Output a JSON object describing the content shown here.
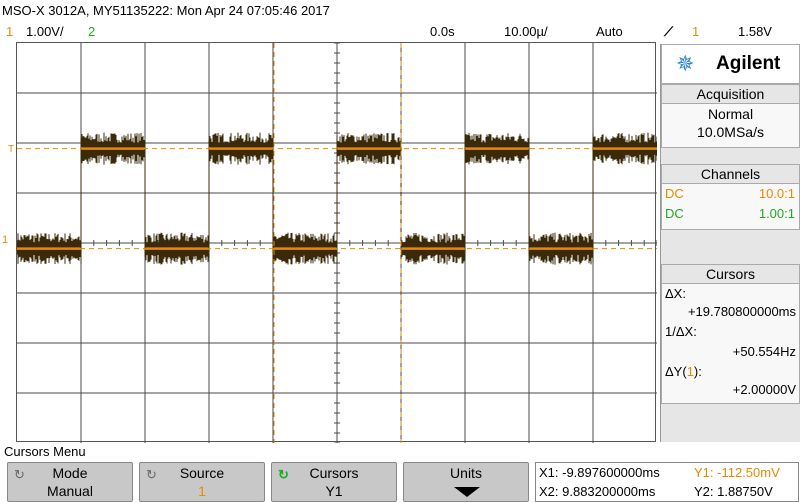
{
  "header": {
    "title": "MSO-X 3012A, MY51135222: Mon Apr 24 07:05:46 2017",
    "ch1_number": "1",
    "ch1_scale": "1.00V/",
    "ch2_number": "2",
    "time_delay": "0.0s",
    "time_scale": "10.00µ/",
    "trigger_mode": "Auto",
    "trigger_icon": "trigger-edge-icon",
    "trigger_source": "1",
    "trigger_level": "1.58V"
  },
  "colors": {
    "ch1": "#e68a00",
    "ch2": "#22aa22",
    "trace": "#3a2a0a",
    "grid": "#4a4a4a"
  },
  "panel": {
    "brand": "Agilent",
    "acquisition": {
      "header": "Acquisition",
      "mode": "Normal",
      "rate": "10.0MSa/s"
    },
    "channels": {
      "header": "Channels",
      "rows": [
        {
          "coupling": "DC",
          "probe": "10.0:1"
        },
        {
          "coupling": "DC",
          "probe": "1.00:1"
        }
      ]
    },
    "cursors": {
      "header": "Cursors",
      "dx_label": "ΔX:",
      "dx_value": "+19.780800000ms",
      "inv_dx_label": "1/ΔX:",
      "inv_dx_value": "+50.554Hz",
      "dy_label_pre": "ΔY(",
      "dy_label_ch": "1",
      "dy_label_post": "):",
      "dy_value": "+2.00000V"
    }
  },
  "markers": {
    "ch1_ground": "1",
    "trigger_level": "T"
  },
  "menu": {
    "title": "Cursors Menu",
    "keys": [
      {
        "top": "Mode",
        "bottom": "Manual"
      },
      {
        "top": "Source",
        "bottom": "1"
      },
      {
        "top": "Cursors",
        "bottom": "Y1"
      },
      {
        "top": "Units",
        "bottom": ""
      }
    ],
    "readout": {
      "x1": "X1: -9.897600000ms",
      "x2": "X2: 9.883200000ms",
      "y1": "Y1: -112.50mV",
      "y2": "Y2: 1.88750V"
    }
  },
  "chart_data": {
    "type": "line",
    "series": [
      {
        "name": "1",
        "x_divisions": [
          0,
          1,
          1,
          2,
          2,
          3,
          3,
          4,
          4,
          5,
          5,
          6,
          6,
          7,
          7,
          8,
          8,
          9,
          9,
          10
        ],
        "levels_V": [
          -0.1125,
          -0.1125,
          1.8875,
          1.8875,
          -0.1125,
          -0.1125,
          1.8875,
          1.8875,
          -0.1125,
          -0.1125,
          1.8875,
          1.8875,
          -0.1125,
          -0.1125,
          1.8875,
          1.8875,
          -0.1125,
          -0.1125,
          1.8875,
          1.8875
        ]
      }
    ],
    "cursor_y1_V": -0.1125,
    "cursor_y2_V": 1.8875,
    "xlim_div": [
      0,
      10
    ],
    "ylim_div": [
      0,
      8
    ],
    "grid": true
  }
}
